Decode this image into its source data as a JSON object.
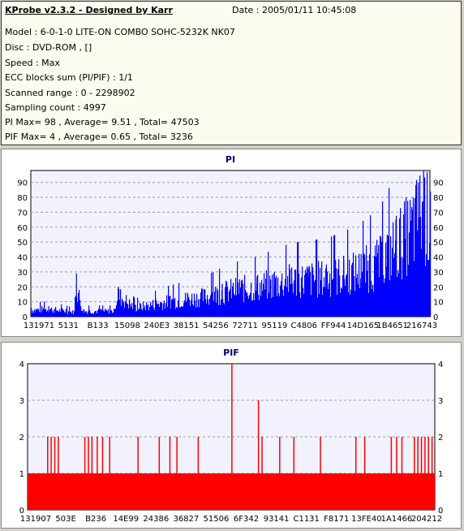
{
  "info": {
    "title": "KProbe v2.3.2 - Designed by Karr",
    "date": "Date : 2005/01/11 10:45:08",
    "lines": [
      "Model : 6-0-1-0 LITE-ON COMBO SOHC-5232K NK07",
      "Disc : DVD-ROM ,  []",
      "Speed : Max",
      "ECC blocks sum (PI/PIF) : 1/1",
      "Scanned range : 0 - 2298902",
      "Sampling count : 4997",
      "PI Max= 98 , Average= 9.51 , Total= 47503",
      "PIF Max= 4 , Average= 0.65 , Total= 3236"
    ]
  },
  "colors": {
    "pi_fill": "#0000ff",
    "pif_fill": "#ff0000",
    "plot_bg": "#f2f2ff",
    "title_color": "#000080",
    "grid": "#999999"
  },
  "chart_data": [
    {
      "type": "bar",
      "title": "PI",
      "x_tick_labels": [
        "131971",
        "5131",
        "B133",
        "15098",
        "240E3",
        "38151",
        "54256",
        "72711",
        "95119",
        "C4806",
        "FF944",
        "14D165",
        "1B4651",
        "216743"
      ],
      "y_ticks": [
        "0",
        "10",
        "20",
        "30",
        "40",
        "50",
        "60",
        "70",
        "80",
        "90"
      ],
      "ylim": [
        0,
        98
      ],
      "grid": true,
      "x_range": [
        0,
        2298902
      ],
      "series": [
        {
          "x": [
            0,
            100000,
            200000,
            250000,
            260000,
            300000,
            400000,
            480000,
            500000,
            600000,
            700000,
            800000,
            900000,
            1000000,
            1100000,
            1200000,
            1300000,
            1400000,
            1500000,
            1600000,
            1700000,
            1800000,
            1900000,
            2000000,
            2050000,
            2100000,
            2150000,
            2200000,
            2230000,
            2260000,
            2298902
          ],
          "values": [
            6,
            7,
            5,
            4,
            29,
            5,
            5,
            5,
            20,
            8,
            11,
            14,
            16,
            18,
            22,
            25,
            27,
            30,
            33,
            34,
            35,
            38,
            42,
            48,
            55,
            65,
            72,
            80,
            90,
            98,
            84
          ]
        }
      ]
    },
    {
      "type": "bar",
      "title": "PIF",
      "x_tick_labels": [
        "131907",
        "503E",
        "B236",
        "14E99",
        "24386",
        "36827",
        "51506",
        "6F342",
        "93141",
        "C1131",
        "F8171",
        "13FE40",
        "1A1466",
        "204212"
      ],
      "y_ticks": [
        "0",
        "1",
        "2",
        "3",
        "4"
      ],
      "ylim": [
        0,
        4
      ],
      "grid": true,
      "x_range": [
        0,
        2298902
      ],
      "base_level": 1,
      "series": [
        {
          "x": [
            110000,
            130000,
            150000,
            170000,
            320000,
            340000,
            360000,
            390000,
            420000,
            460000,
            620000,
            740000,
            800000,
            840000,
            960000,
            1150000,
            1300000,
            1320000,
            1420000,
            1500000,
            1650000,
            1850000,
            1900000,
            2050000,
            2080000,
            2110000,
            2180000,
            2200000,
            2220000,
            2240000,
            2260000,
            2280000
          ],
          "values": [
            2,
            2,
            2,
            2,
            2,
            2,
            2,
            2,
            2,
            2,
            2,
            2,
            2,
            2,
            2,
            4,
            3,
            2,
            2,
            2,
            2,
            2,
            2,
            2,
            2,
            2,
            2,
            2,
            2,
            2,
            2,
            2
          ]
        }
      ]
    }
  ]
}
